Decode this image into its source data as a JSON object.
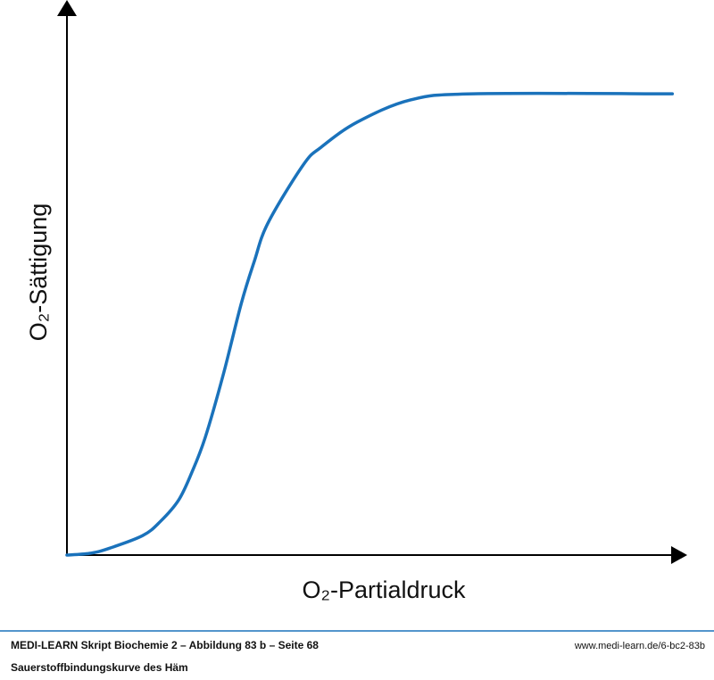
{
  "chart_data": {
    "type": "line",
    "x_label": "O₂-Partialdruck",
    "y_label": "O₂-Sättigung",
    "xlim": [
      0,
      100
    ],
    "ylim": [
      0,
      100
    ],
    "x": [
      0,
      3.6,
      6.5,
      12.2,
      15.1,
      18,
      20.1,
      22.3,
      25.2,
      28.1,
      30.2,
      32.4,
      38.1,
      41,
      46.8,
      55.4,
      65.5,
      97.6
    ],
    "series": [
      {
        "color": "#1a72bb",
        "values": [
          0,
          0.3,
          1.1,
          3.5,
          6.1,
          9.9,
          14.8,
          21.2,
          32.5,
          45.3,
          52.9,
          59.8,
          70.3,
          73.5,
          78,
          82,
          83.1,
          83.1
        ]
      }
    ]
  },
  "footer": {
    "line1": "MEDI-LEARN Skript Biochemie 2 – Abbildung 83 b – Seite 68",
    "line2": "Sauerstoffbindungskurve des Häm",
    "url": "www.medi-learn.de/6-bc2-83b"
  }
}
